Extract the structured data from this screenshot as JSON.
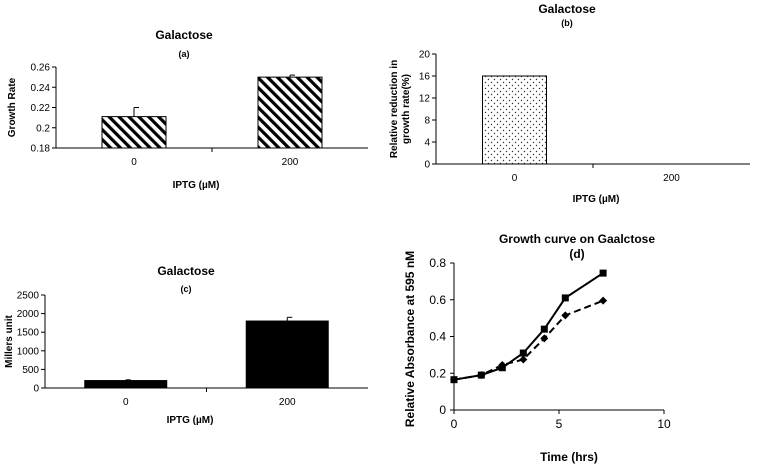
{
  "chart_data": [
    {
      "id": "a",
      "type": "bar",
      "title": "Galactose",
      "subtitle": "(a)",
      "xlabel": "IPTG (µM)",
      "ylabel": "Growth Rate",
      "categories": [
        "0",
        "200"
      ],
      "values": [
        0.211,
        0.25
      ],
      "errors": [
        0.009,
        0.002
      ],
      "ylim": [
        0.18,
        0.26
      ],
      "yticks": [
        "0.18",
        "0.2",
        "0.22",
        "0.24",
        "0.26"
      ],
      "fill": "hatched"
    },
    {
      "id": "b",
      "type": "bar",
      "title": "Galactose",
      "subtitle": "(b)",
      "xlabel": "IPTG (µM)",
      "ylabel_lines": [
        "Relative reduction in",
        "growth rate(%)"
      ],
      "categories": [
        "0",
        "200"
      ],
      "values": [
        16,
        0
      ],
      "ylim": [
        0,
        20
      ],
      "yticks": [
        "0",
        "4",
        "8",
        "12",
        "16",
        "20"
      ],
      "fill": "dotted"
    },
    {
      "id": "c",
      "type": "bar",
      "title": "Galactose",
      "subtitle": "(c)",
      "xlabel": "IPTG (µM)",
      "ylabel": "Millers unit",
      "categories": [
        "0",
        "200"
      ],
      "values": [
        200,
        1800
      ],
      "errors": [
        20,
        100
      ],
      "ylim": [
        0,
        2500
      ],
      "yticks": [
        "0",
        "500",
        "1000",
        "1500",
        "2000",
        "2500"
      ],
      "fill": "solid"
    },
    {
      "id": "d",
      "type": "line",
      "title": "Growth curve on Gaalctose",
      "subtitle": "(d)",
      "xlabel": "Time (hrs)",
      "ylabel": "Relative Absorbance at 595 nM",
      "xlim": [
        0,
        10
      ],
      "ylim": [
        0,
        0.8
      ],
      "xticks": [
        "0",
        "5",
        "10"
      ],
      "yticks": [
        "0",
        "0.2",
        "0.4",
        "0.6",
        "0.8"
      ],
      "series": [
        {
          "name": "square-solid",
          "style": "solid",
          "marker": "square",
          "x": [
            0,
            1.3,
            2.3,
            3.3,
            4.3,
            5.3,
            7.1
          ],
          "y": [
            0.165,
            0.19,
            0.23,
            0.31,
            0.44,
            0.61,
            0.745
          ]
        },
        {
          "name": "diamond-dashed",
          "style": "dashed",
          "marker": "diamond",
          "x": [
            0,
            1.3,
            2.3,
            3.3,
            4.3,
            5.3,
            7.1
          ],
          "y": [
            0.165,
            0.19,
            0.245,
            0.275,
            0.39,
            0.515,
            0.595
          ]
        }
      ]
    }
  ]
}
